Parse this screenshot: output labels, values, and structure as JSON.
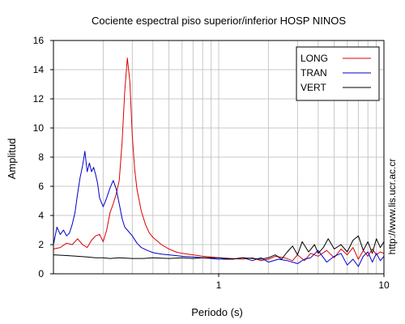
{
  "chart_data": {
    "type": "line",
    "title": "Cociente espectral piso superior/inferior  HOSP NINOS",
    "xlabel": "Periodo (s)",
    "ylabel": "Amplitud",
    "x_scale": "log",
    "xlim": [
      0.1,
      10
    ],
    "ylim": [
      0,
      16
    ],
    "grid": true,
    "legend_position": "top-right",
    "x_tick_labels": [
      {
        "value": 1,
        "label": "1"
      },
      {
        "value": 10,
        "label": "10"
      }
    ],
    "y_ticks": [
      0,
      2,
      4,
      6,
      8,
      10,
      12,
      14,
      16
    ],
    "side_text": "http://www.lis.ucr.ac.cr",
    "series": [
      {
        "name": "LONG",
        "color": "#dd0000",
        "points": [
          [
            0.1,
            1.7
          ],
          [
            0.11,
            1.8
          ],
          [
            0.12,
            2.1
          ],
          [
            0.13,
            2.0
          ],
          [
            0.14,
            2.4
          ],
          [
            0.15,
            2.0
          ],
          [
            0.16,
            1.8
          ],
          [
            0.17,
            2.3
          ],
          [
            0.18,
            2.6
          ],
          [
            0.19,
            2.7
          ],
          [
            0.2,
            2.2
          ],
          [
            0.21,
            3.0
          ],
          [
            0.22,
            4.2
          ],
          [
            0.23,
            4.8
          ],
          [
            0.24,
            5.5
          ],
          [
            0.25,
            6.4
          ],
          [
            0.26,
            9.0
          ],
          [
            0.27,
            12.5
          ],
          [
            0.28,
            14.8
          ],
          [
            0.29,
            13.2
          ],
          [
            0.3,
            9.5
          ],
          [
            0.31,
            7.2
          ],
          [
            0.32,
            5.8
          ],
          [
            0.34,
            4.3
          ],
          [
            0.36,
            3.4
          ],
          [
            0.38,
            2.8
          ],
          [
            0.4,
            2.5
          ],
          [
            0.45,
            2.0
          ],
          [
            0.5,
            1.7
          ],
          [
            0.55,
            1.5
          ],
          [
            0.6,
            1.4
          ],
          [
            0.7,
            1.3
          ],
          [
            0.8,
            1.2
          ],
          [
            0.9,
            1.15
          ],
          [
            1.0,
            1.1
          ],
          [
            1.2,
            1.05
          ],
          [
            1.4,
            1.0
          ],
          [
            1.6,
            1.1
          ],
          [
            1.8,
            0.9
          ],
          [
            2.0,
            1.0
          ],
          [
            2.2,
            1.2
          ],
          [
            2.5,
            1.1
          ],
          [
            2.8,
            0.9
          ],
          [
            3.0,
            1.3
          ],
          [
            3.3,
            0.9
          ],
          [
            3.6,
            1.4
          ],
          [
            4.0,
            1.2
          ],
          [
            4.5,
            1.6
          ],
          [
            5.0,
            1.1
          ],
          [
            5.5,
            1.7
          ],
          [
            6.0,
            1.3
          ],
          [
            6.5,
            1.8
          ],
          [
            7.0,
            1.0
          ],
          [
            7.5,
            1.6
          ],
          [
            8.0,
            1.2
          ],
          [
            8.5,
            1.7
          ],
          [
            9.0,
            1.3
          ],
          [
            9.5,
            1.5
          ],
          [
            10.0,
            1.4
          ]
        ]
      },
      {
        "name": "TRAN",
        "color": "#0000cc",
        "points": [
          [
            0.1,
            2.0
          ],
          [
            0.105,
            3.2
          ],
          [
            0.11,
            2.7
          ],
          [
            0.115,
            3.0
          ],
          [
            0.12,
            2.6
          ],
          [
            0.125,
            2.8
          ],
          [
            0.13,
            3.4
          ],
          [
            0.135,
            4.2
          ],
          [
            0.14,
            5.5
          ],
          [
            0.145,
            6.6
          ],
          [
            0.15,
            7.4
          ],
          [
            0.155,
            8.4
          ],
          [
            0.16,
            7.0
          ],
          [
            0.165,
            7.6
          ],
          [
            0.17,
            7.0
          ],
          [
            0.175,
            7.3
          ],
          [
            0.18,
            6.8
          ],
          [
            0.185,
            6.2
          ],
          [
            0.19,
            5.2
          ],
          [
            0.2,
            4.6
          ],
          [
            0.21,
            5.2
          ],
          [
            0.22,
            5.9
          ],
          [
            0.23,
            6.4
          ],
          [
            0.24,
            5.8
          ],
          [
            0.25,
            4.8
          ],
          [
            0.26,
            3.8
          ],
          [
            0.27,
            3.2
          ],
          [
            0.28,
            3.0
          ],
          [
            0.3,
            2.6
          ],
          [
            0.32,
            2.1
          ],
          [
            0.34,
            1.8
          ],
          [
            0.37,
            1.6
          ],
          [
            0.4,
            1.45
          ],
          [
            0.45,
            1.35
          ],
          [
            0.5,
            1.3
          ],
          [
            0.6,
            1.2
          ],
          [
            0.7,
            1.15
          ],
          [
            0.8,
            1.1
          ],
          [
            0.9,
            1.05
          ],
          [
            1.0,
            1.0
          ],
          [
            1.2,
            1.0
          ],
          [
            1.4,
            1.1
          ],
          [
            1.6,
            0.9
          ],
          [
            1.8,
            1.1
          ],
          [
            2.0,
            0.8
          ],
          [
            2.3,
            1.0
          ],
          [
            2.6,
            0.9
          ],
          [
            3.0,
            0.7
          ],
          [
            3.3,
            1.0
          ],
          [
            3.6,
            1.1
          ],
          [
            4.0,
            1.6
          ],
          [
            4.5,
            0.8
          ],
          [
            5.0,
            1.2
          ],
          [
            5.5,
            1.4
          ],
          [
            6.0,
            0.6
          ],
          [
            6.5,
            1.0
          ],
          [
            7.0,
            0.5
          ],
          [
            7.5,
            1.2
          ],
          [
            8.0,
            1.5
          ],
          [
            8.5,
            0.8
          ],
          [
            9.0,
            1.4
          ],
          [
            9.5,
            0.9
          ],
          [
            10.0,
            1.2
          ]
        ]
      },
      {
        "name": "VERT",
        "color": "#000000",
        "points": [
          [
            0.1,
            1.3
          ],
          [
            0.12,
            1.25
          ],
          [
            0.14,
            1.2
          ],
          [
            0.16,
            1.15
          ],
          [
            0.18,
            1.1
          ],
          [
            0.2,
            1.1
          ],
          [
            0.22,
            1.05
          ],
          [
            0.25,
            1.1
          ],
          [
            0.3,
            1.05
          ],
          [
            0.35,
            1.05
          ],
          [
            0.4,
            1.1
          ],
          [
            0.5,
            1.05
          ],
          [
            0.6,
            1.1
          ],
          [
            0.7,
            1.05
          ],
          [
            0.8,
            1.1
          ],
          [
            0.9,
            1.1
          ],
          [
            1.0,
            1.1
          ],
          [
            1.2,
            1.0
          ],
          [
            1.4,
            1.1
          ],
          [
            1.6,
            1.05
          ],
          [
            1.8,
            1.0
          ],
          [
            2.0,
            1.1
          ],
          [
            2.2,
            1.3
          ],
          [
            2.4,
            1.0
          ],
          [
            2.6,
            1.5
          ],
          [
            2.8,
            1.9
          ],
          [
            3.0,
            1.3
          ],
          [
            3.2,
            2.2
          ],
          [
            3.5,
            1.5
          ],
          [
            3.8,
            2.0
          ],
          [
            4.0,
            1.4
          ],
          [
            4.3,
            1.8
          ],
          [
            4.6,
            2.4
          ],
          [
            5.0,
            1.7
          ],
          [
            5.5,
            2.0
          ],
          [
            6.0,
            1.5
          ],
          [
            6.5,
            2.3
          ],
          [
            7.0,
            2.6
          ],
          [
            7.5,
            1.6
          ],
          [
            8.0,
            2.2
          ],
          [
            8.5,
            1.4
          ],
          [
            9.0,
            2.4
          ],
          [
            9.5,
            1.8
          ],
          [
            10.0,
            2.2
          ]
        ]
      }
    ]
  }
}
